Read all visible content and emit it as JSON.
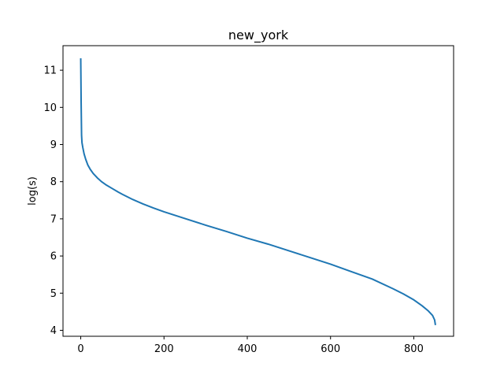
{
  "chart_data": {
    "type": "line",
    "title": "new_york",
    "xlabel": "",
    "ylabel": "log(s)",
    "xlim": [
      -42.6,
      895.6
    ],
    "ylim": [
      3.84,
      11.66
    ],
    "xticks": [
      0,
      200,
      400,
      600,
      800
    ],
    "yticks": [
      4,
      5,
      6,
      7,
      8,
      9,
      10,
      11
    ],
    "xtick_labels": [
      "0",
      "200",
      "400",
      "600",
      "800"
    ],
    "ytick_labels": [
      "4",
      "5",
      "6",
      "7",
      "8",
      "9",
      "10",
      "11"
    ],
    "grid": false,
    "series": [
      {
        "color": "#1f77b4",
        "x": [
          0,
          1,
          2,
          3,
          5,
          8,
          12,
          17,
          23,
          30,
          40,
          50,
          60,
          75,
          90,
          100,
          125,
          150,
          175,
          200,
          250,
          300,
          350,
          400,
          450,
          500,
          550,
          600,
          650,
          700,
          750,
          775,
          800,
          820,
          835,
          845,
          850,
          852
        ],
        "y": [
          11.32,
          10.1,
          9.25,
          9.05,
          8.92,
          8.75,
          8.6,
          8.45,
          8.33,
          8.22,
          8.1,
          8.0,
          7.92,
          7.82,
          7.72,
          7.66,
          7.52,
          7.4,
          7.29,
          7.19,
          7.01,
          6.83,
          6.66,
          6.48,
          6.32,
          6.14,
          5.96,
          5.78,
          5.58,
          5.38,
          5.12,
          4.98,
          4.82,
          4.66,
          4.52,
          4.4,
          4.28,
          4.14
        ]
      }
    ]
  }
}
